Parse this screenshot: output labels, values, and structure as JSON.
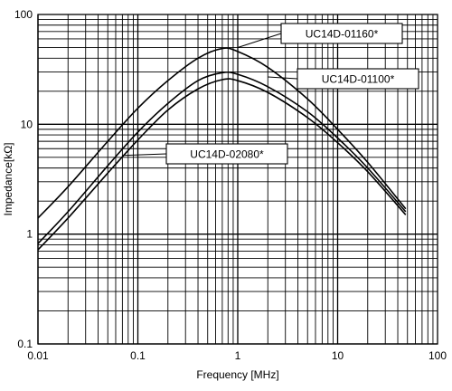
{
  "chart_data": {
    "type": "line",
    "title": "",
    "xlabel": "Frequency [MHz]",
    "ylabel": "Impedance[kΩ]",
    "x_scale": "log",
    "y_scale": "log",
    "xlim": [
      0.01,
      100
    ],
    "ylim": [
      0.1,
      100
    ],
    "grid": true,
    "x_ticks": [
      {
        "value": 0.01,
        "label": "0.01"
      },
      {
        "value": 0.1,
        "label": "0.1"
      },
      {
        "value": 1,
        "label": "1"
      },
      {
        "value": 10,
        "label": "10"
      },
      {
        "value": 100,
        "label": "100"
      }
    ],
    "y_ticks": [
      {
        "value": 0.1,
        "label": "0.1"
      },
      {
        "value": 1,
        "label": "1"
      },
      {
        "value": 10,
        "label": "10"
      },
      {
        "value": 100,
        "label": "100"
      }
    ],
    "series": [
      {
        "name": "UC14D-01160*",
        "label_anchor": {
          "x": 1.0,
          "y": 50
        },
        "points": [
          [
            0.01,
            1.4
          ],
          [
            0.02,
            2.7
          ],
          [
            0.05,
            7.0
          ],
          [
            0.1,
            14.0
          ],
          [
            0.2,
            25.0
          ],
          [
            0.4,
            40.0
          ],
          [
            0.7,
            49.0
          ],
          [
            1.0,
            46.0
          ],
          [
            2.0,
            33.0
          ],
          [
            5.0,
            17.0
          ],
          [
            10.0,
            9.0
          ],
          [
            20.0,
            4.5
          ],
          [
            48.0,
            1.7
          ]
        ]
      },
      {
        "name": "UC14D-01100*",
        "label_anchor": {
          "x": 2.0,
          "y": 27
        },
        "points": [
          [
            0.01,
            0.82
          ],
          [
            0.02,
            1.6
          ],
          [
            0.05,
            4.2
          ],
          [
            0.1,
            8.5
          ],
          [
            0.2,
            15.5
          ],
          [
            0.4,
            25.0
          ],
          [
            0.7,
            29.5
          ],
          [
            1.0,
            28.5
          ],
          [
            2.0,
            22.0
          ],
          [
            5.0,
            13.0
          ],
          [
            10.0,
            7.5
          ],
          [
            20.0,
            4.0
          ],
          [
            48.0,
            1.6
          ]
        ]
      },
      {
        "name": "UC14D-02080*",
        "label_anchor": {
          "x": 0.07,
          "y": 5.2
        },
        "points": [
          [
            0.01,
            0.72
          ],
          [
            0.02,
            1.4
          ],
          [
            0.05,
            3.6
          ],
          [
            0.1,
            7.2
          ],
          [
            0.2,
            13.5
          ],
          [
            0.4,
            21.0
          ],
          [
            0.7,
            25.5
          ],
          [
            1.0,
            25.0
          ],
          [
            2.0,
            19.5
          ],
          [
            5.0,
            11.5
          ],
          [
            10.0,
            6.8
          ],
          [
            20.0,
            3.7
          ],
          [
            48.0,
            1.5
          ]
        ]
      }
    ]
  }
}
